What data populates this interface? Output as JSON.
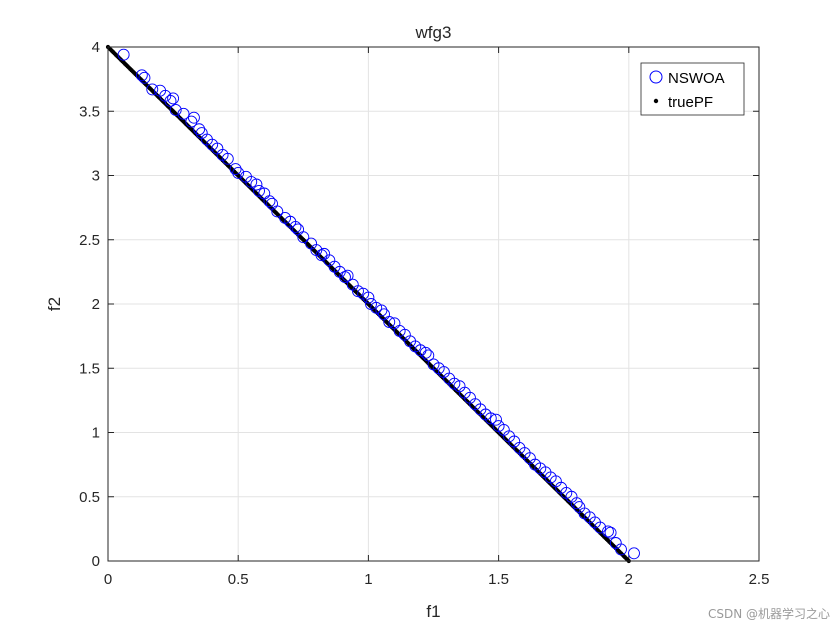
{
  "chart_data": {
    "type": "scatter",
    "title": "wfg3",
    "xlabel": "f1",
    "ylabel": "f2",
    "xlim": [
      0,
      2.5
    ],
    "ylim": [
      0,
      4
    ],
    "xticks": [
      0,
      0.5,
      1,
      1.5,
      2,
      2.5
    ],
    "yticks": [
      0,
      0.5,
      1,
      1.5,
      2,
      2.5,
      3,
      3.5,
      4
    ],
    "xtick_labels": [
      "0",
      "0.5",
      "1",
      "1.5",
      "2",
      "2.5"
    ],
    "ytick_labels": [
      "0",
      "0.5",
      "1",
      "1.5",
      "2",
      "2.5",
      "3",
      "3.5",
      "4"
    ],
    "grid": true,
    "legend_position": "top-right",
    "series": [
      {
        "name": "NSWOA",
        "marker": "open-circle",
        "color": "#0000ff",
        "points": [
          [
            0.06,
            3.94
          ],
          [
            0.13,
            3.78
          ],
          [
            0.14,
            3.76
          ],
          [
            0.17,
            3.67
          ],
          [
            0.2,
            3.66
          ],
          [
            0.22,
            3.62
          ],
          [
            0.24,
            3.58
          ],
          [
            0.25,
            3.6
          ],
          [
            0.26,
            3.51
          ],
          [
            0.29,
            3.48
          ],
          [
            0.32,
            3.42
          ],
          [
            0.33,
            3.45
          ],
          [
            0.35,
            3.36
          ],
          [
            0.36,
            3.33
          ],
          [
            0.38,
            3.28
          ],
          [
            0.4,
            3.24
          ],
          [
            0.42,
            3.21
          ],
          [
            0.44,
            3.16
          ],
          [
            0.46,
            3.13
          ],
          [
            0.49,
            3.05
          ],
          [
            0.5,
            3.02
          ],
          [
            0.53,
            2.99
          ],
          [
            0.55,
            2.95
          ],
          [
            0.57,
            2.93
          ],
          [
            0.58,
            2.88
          ],
          [
            0.6,
            2.86
          ],
          [
            0.62,
            2.8
          ],
          [
            0.63,
            2.78
          ],
          [
            0.65,
            2.72
          ],
          [
            0.68,
            2.67
          ],
          [
            0.7,
            2.64
          ],
          [
            0.72,
            2.6
          ],
          [
            0.73,
            2.58
          ],
          [
            0.75,
            2.52
          ],
          [
            0.78,
            2.47
          ],
          [
            0.8,
            2.42
          ],
          [
            0.82,
            2.38
          ],
          [
            0.83,
            2.39
          ],
          [
            0.85,
            2.34
          ],
          [
            0.87,
            2.29
          ],
          [
            0.89,
            2.25
          ],
          [
            0.91,
            2.21
          ],
          [
            0.92,
            2.22
          ],
          [
            0.94,
            2.15
          ],
          [
            0.96,
            2.1
          ],
          [
            0.98,
            2.08
          ],
          [
            1.0,
            2.05
          ],
          [
            1.01,
            2.0
          ],
          [
            1.03,
            1.97
          ],
          [
            1.05,
            1.95
          ],
          [
            1.06,
            1.92
          ],
          [
            1.08,
            1.86
          ],
          [
            1.1,
            1.85
          ],
          [
            1.12,
            1.79
          ],
          [
            1.14,
            1.76
          ],
          [
            1.16,
            1.71
          ],
          [
            1.18,
            1.67
          ],
          [
            1.2,
            1.64
          ],
          [
            1.22,
            1.62
          ],
          [
            1.23,
            1.6
          ],
          [
            1.25,
            1.53
          ],
          [
            1.27,
            1.5
          ],
          [
            1.29,
            1.47
          ],
          [
            1.31,
            1.42
          ],
          [
            1.33,
            1.38
          ],
          [
            1.35,
            1.36
          ],
          [
            1.37,
            1.31
          ],
          [
            1.39,
            1.27
          ],
          [
            1.41,
            1.22
          ],
          [
            1.43,
            1.18
          ],
          [
            1.45,
            1.14
          ],
          [
            1.47,
            1.11
          ],
          [
            1.49,
            1.1
          ],
          [
            1.5,
            1.05
          ],
          [
            1.52,
            1.02
          ],
          [
            1.54,
            0.97
          ],
          [
            1.56,
            0.93
          ],
          [
            1.58,
            0.88
          ],
          [
            1.6,
            0.84
          ],
          [
            1.62,
            0.8
          ],
          [
            1.64,
            0.75
          ],
          [
            1.66,
            0.72
          ],
          [
            1.68,
            0.69
          ],
          [
            1.7,
            0.65
          ],
          [
            1.72,
            0.62
          ],
          [
            1.74,
            0.57
          ],
          [
            1.76,
            0.53
          ],
          [
            1.78,
            0.5
          ],
          [
            1.8,
            0.45
          ],
          [
            1.81,
            0.42
          ],
          [
            1.83,
            0.37
          ],
          [
            1.85,
            0.34
          ],
          [
            1.87,
            0.3
          ],
          [
            1.89,
            0.26
          ],
          [
            1.92,
            0.23
          ],
          [
            1.93,
            0.22
          ],
          [
            1.95,
            0.14
          ],
          [
            1.97,
            0.09
          ],
          [
            2.02,
            0.06
          ]
        ]
      },
      {
        "name": "truePF",
        "marker": "dot",
        "color": "#000000",
        "points": [
          [
            0,
            4
          ],
          [
            2,
            0
          ]
        ]
      }
    ]
  },
  "watermark": "CSDN @机器学习之心"
}
